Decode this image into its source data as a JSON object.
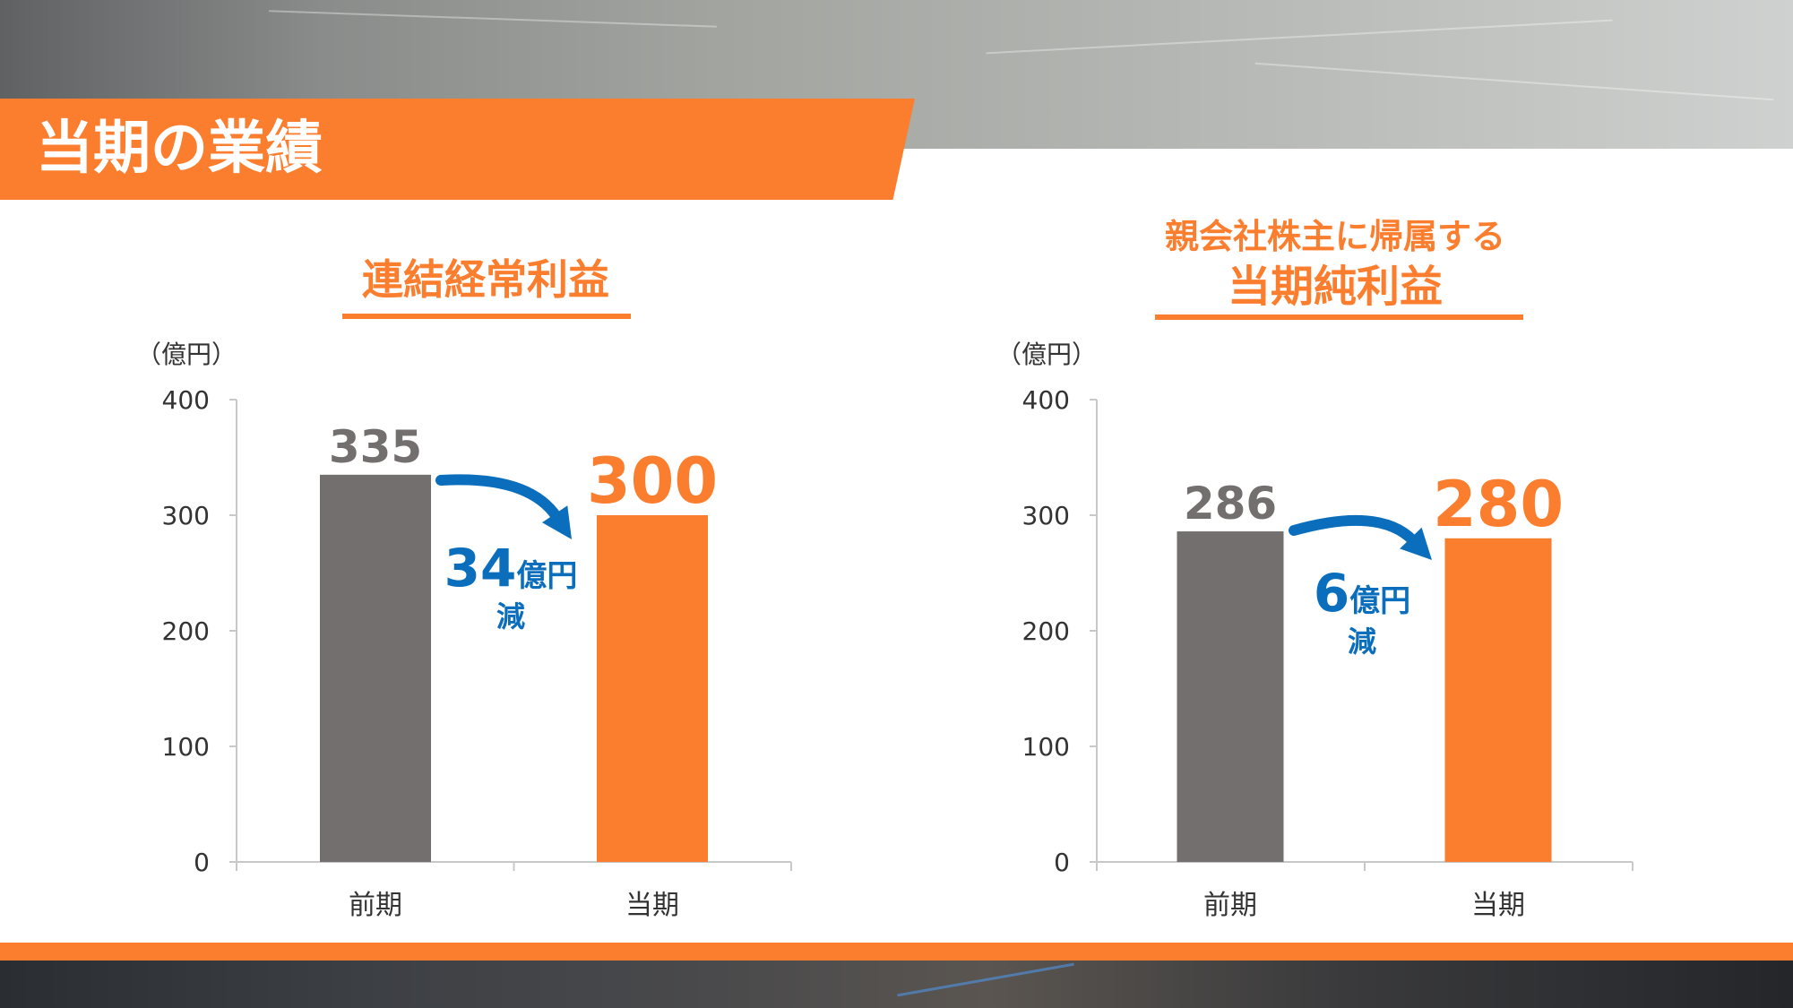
{
  "page": {
    "title": "当期の業績"
  },
  "colors": {
    "accent": "#fb7e2f",
    "previous_bar": "#736f6e",
    "arrow": "#0a6ebd",
    "axis": "#c8c8c8"
  },
  "charts": [
    {
      "title_line1": "",
      "title_line2": "連結経常利益",
      "unit": "（億円）",
      "diff_value": "34",
      "diff_unit": "億円",
      "diff_direction": "減"
    },
    {
      "title_line1": "親会社株主に帰属する",
      "title_line2": "当期純利益",
      "unit": "（億円）",
      "diff_value": "6",
      "diff_unit": "億円",
      "diff_direction": "減"
    }
  ],
  "chart_data": [
    {
      "type": "bar",
      "title": "連結経常利益",
      "categories": [
        "前期",
        "当期"
      ],
      "values": [
        335,
        300
      ],
      "value_labels": [
        "335",
        "300"
      ],
      "ylabel": "（億円）",
      "ylim": [
        0,
        400
      ],
      "yticks": [
        0,
        100,
        200,
        300,
        400
      ],
      "grid": false,
      "annotation": "34億円減"
    },
    {
      "type": "bar",
      "title": "親会社株主に帰属する当期純利益",
      "categories": [
        "前期",
        "当期"
      ],
      "values": [
        286,
        280
      ],
      "value_labels": [
        "286",
        "280"
      ],
      "ylabel": "（億円）",
      "ylim": [
        0,
        400
      ],
      "yticks": [
        0,
        100,
        200,
        300,
        400
      ],
      "grid": false,
      "annotation": "6億円減"
    }
  ]
}
